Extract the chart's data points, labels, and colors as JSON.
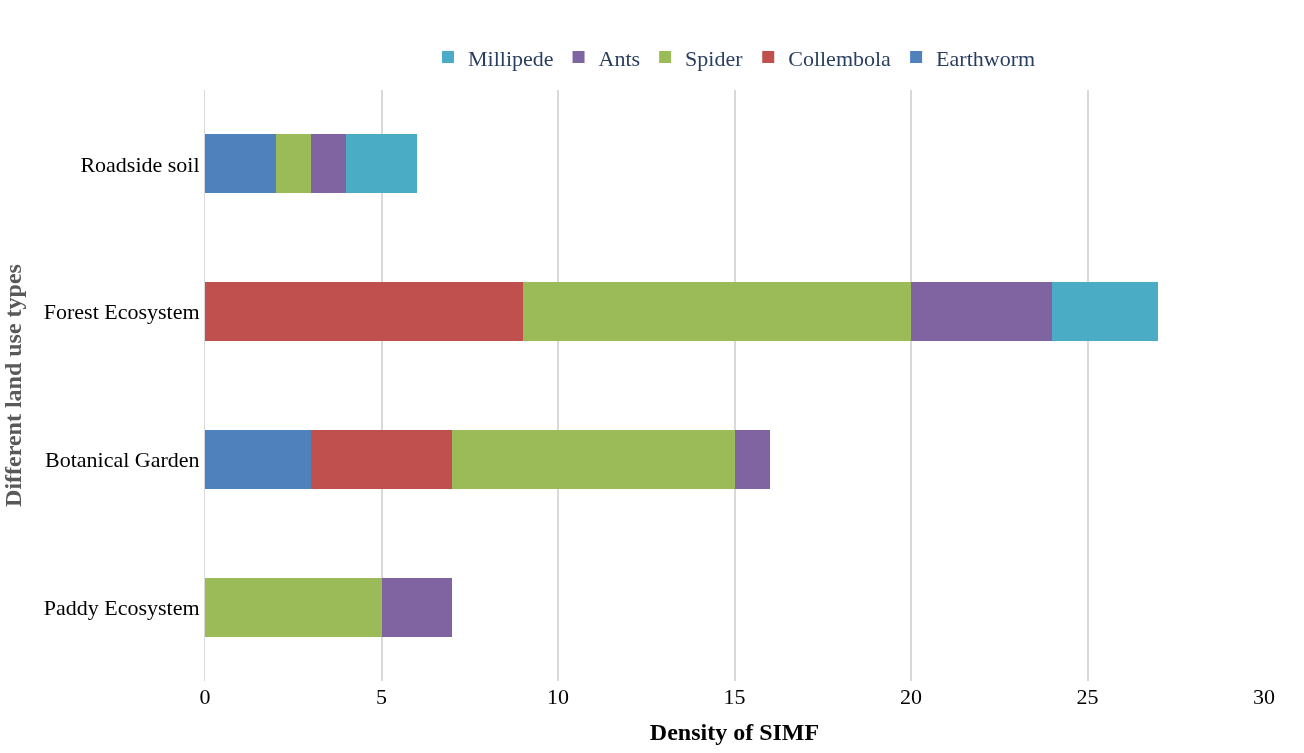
{
  "chart_data": {
    "type": "bar",
    "orientation": "horizontal",
    "stacked": true,
    "xlabel": "Density of SIMF",
    "ylabel": "Different land use types",
    "categories": [
      "Roadside soil",
      "Forest Ecosystem",
      "Botanical Garden",
      "Paddy Ecosystem"
    ],
    "series": [
      {
        "name": "Earthworm",
        "color": "#4f81bd",
        "values": [
          2,
          0,
          3,
          0
        ]
      },
      {
        "name": "Collembola",
        "color": "#c0504d",
        "values": [
          0,
          9,
          4,
          0
        ]
      },
      {
        "name": "Spider",
        "color": "#9bbb59",
        "values": [
          1,
          11,
          8,
          5
        ]
      },
      {
        "name": "Ants",
        "color": "#8064a2",
        "values": [
          1,
          4,
          1,
          2
        ]
      },
      {
        "name": "Millipede",
        "color": "#4bacc6",
        "values": [
          2,
          3,
          0,
          0
        ]
      }
    ],
    "xlim": [
      0,
      30
    ],
    "xticks": [
      0,
      5,
      10,
      15,
      20,
      25,
      30
    ],
    "grid": "x",
    "legend": "top"
  }
}
